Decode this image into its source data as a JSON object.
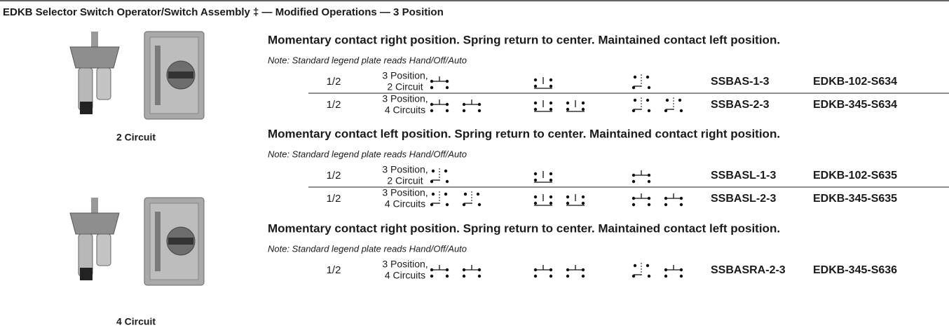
{
  "header": {
    "title": "EDKB Selector Switch Operator/Switch Assembly ‡ — Modified Operations — 3 Position"
  },
  "images": [
    {
      "caption": "2 Circuit"
    },
    {
      "caption": "4 Circuit"
    }
  ],
  "sections": [
    {
      "heading": "Momentary contact right position. Spring return to center. Maintained contact left position.",
      "note": "Note: Standard legend plate reads Hand/Off/Auto",
      "rows": [
        {
          "size": "1/2",
          "description": [
            "3 Position,",
            "2 Circuit"
          ],
          "catalog_a": "SSBAS-1-3",
          "catalog_b": "EDKB-102-S634"
        },
        {
          "size": "1/2",
          "description": [
            "3 Position,",
            "4 Circuits"
          ],
          "catalog_a": "SSBAS-2-3",
          "catalog_b": "EDKB-345-S634"
        }
      ]
    },
    {
      "heading": "Momentary contact left position. Spring return to center. Maintained contact right position.",
      "note": "Note: Standard legend plate reads Hand/Off/Auto",
      "rows": [
        {
          "size": "1/2",
          "description": [
            "3 Position,",
            "2 Circuit"
          ],
          "catalog_a": "SSBASL-1-3",
          "catalog_b": "EDKB-102-S635"
        },
        {
          "size": "1/2",
          "description": [
            "3 Position,",
            "4 Circuits"
          ],
          "catalog_a": "SSBASL-2-3",
          "catalog_b": "EDKB-345-S635"
        }
      ]
    },
    {
      "heading": "Momentary contact right position. Spring return to center. Maintained contact left position.",
      "note": "Note: Standard legend plate reads Hand/Off/Auto",
      "rows": [
        {
          "size": "1/2",
          "description": [
            "3 Position,",
            "4 Circuits"
          ],
          "catalog_a": "SSBASRA-2-3",
          "catalog_b": "EDKB-345-S636"
        }
      ]
    }
  ]
}
